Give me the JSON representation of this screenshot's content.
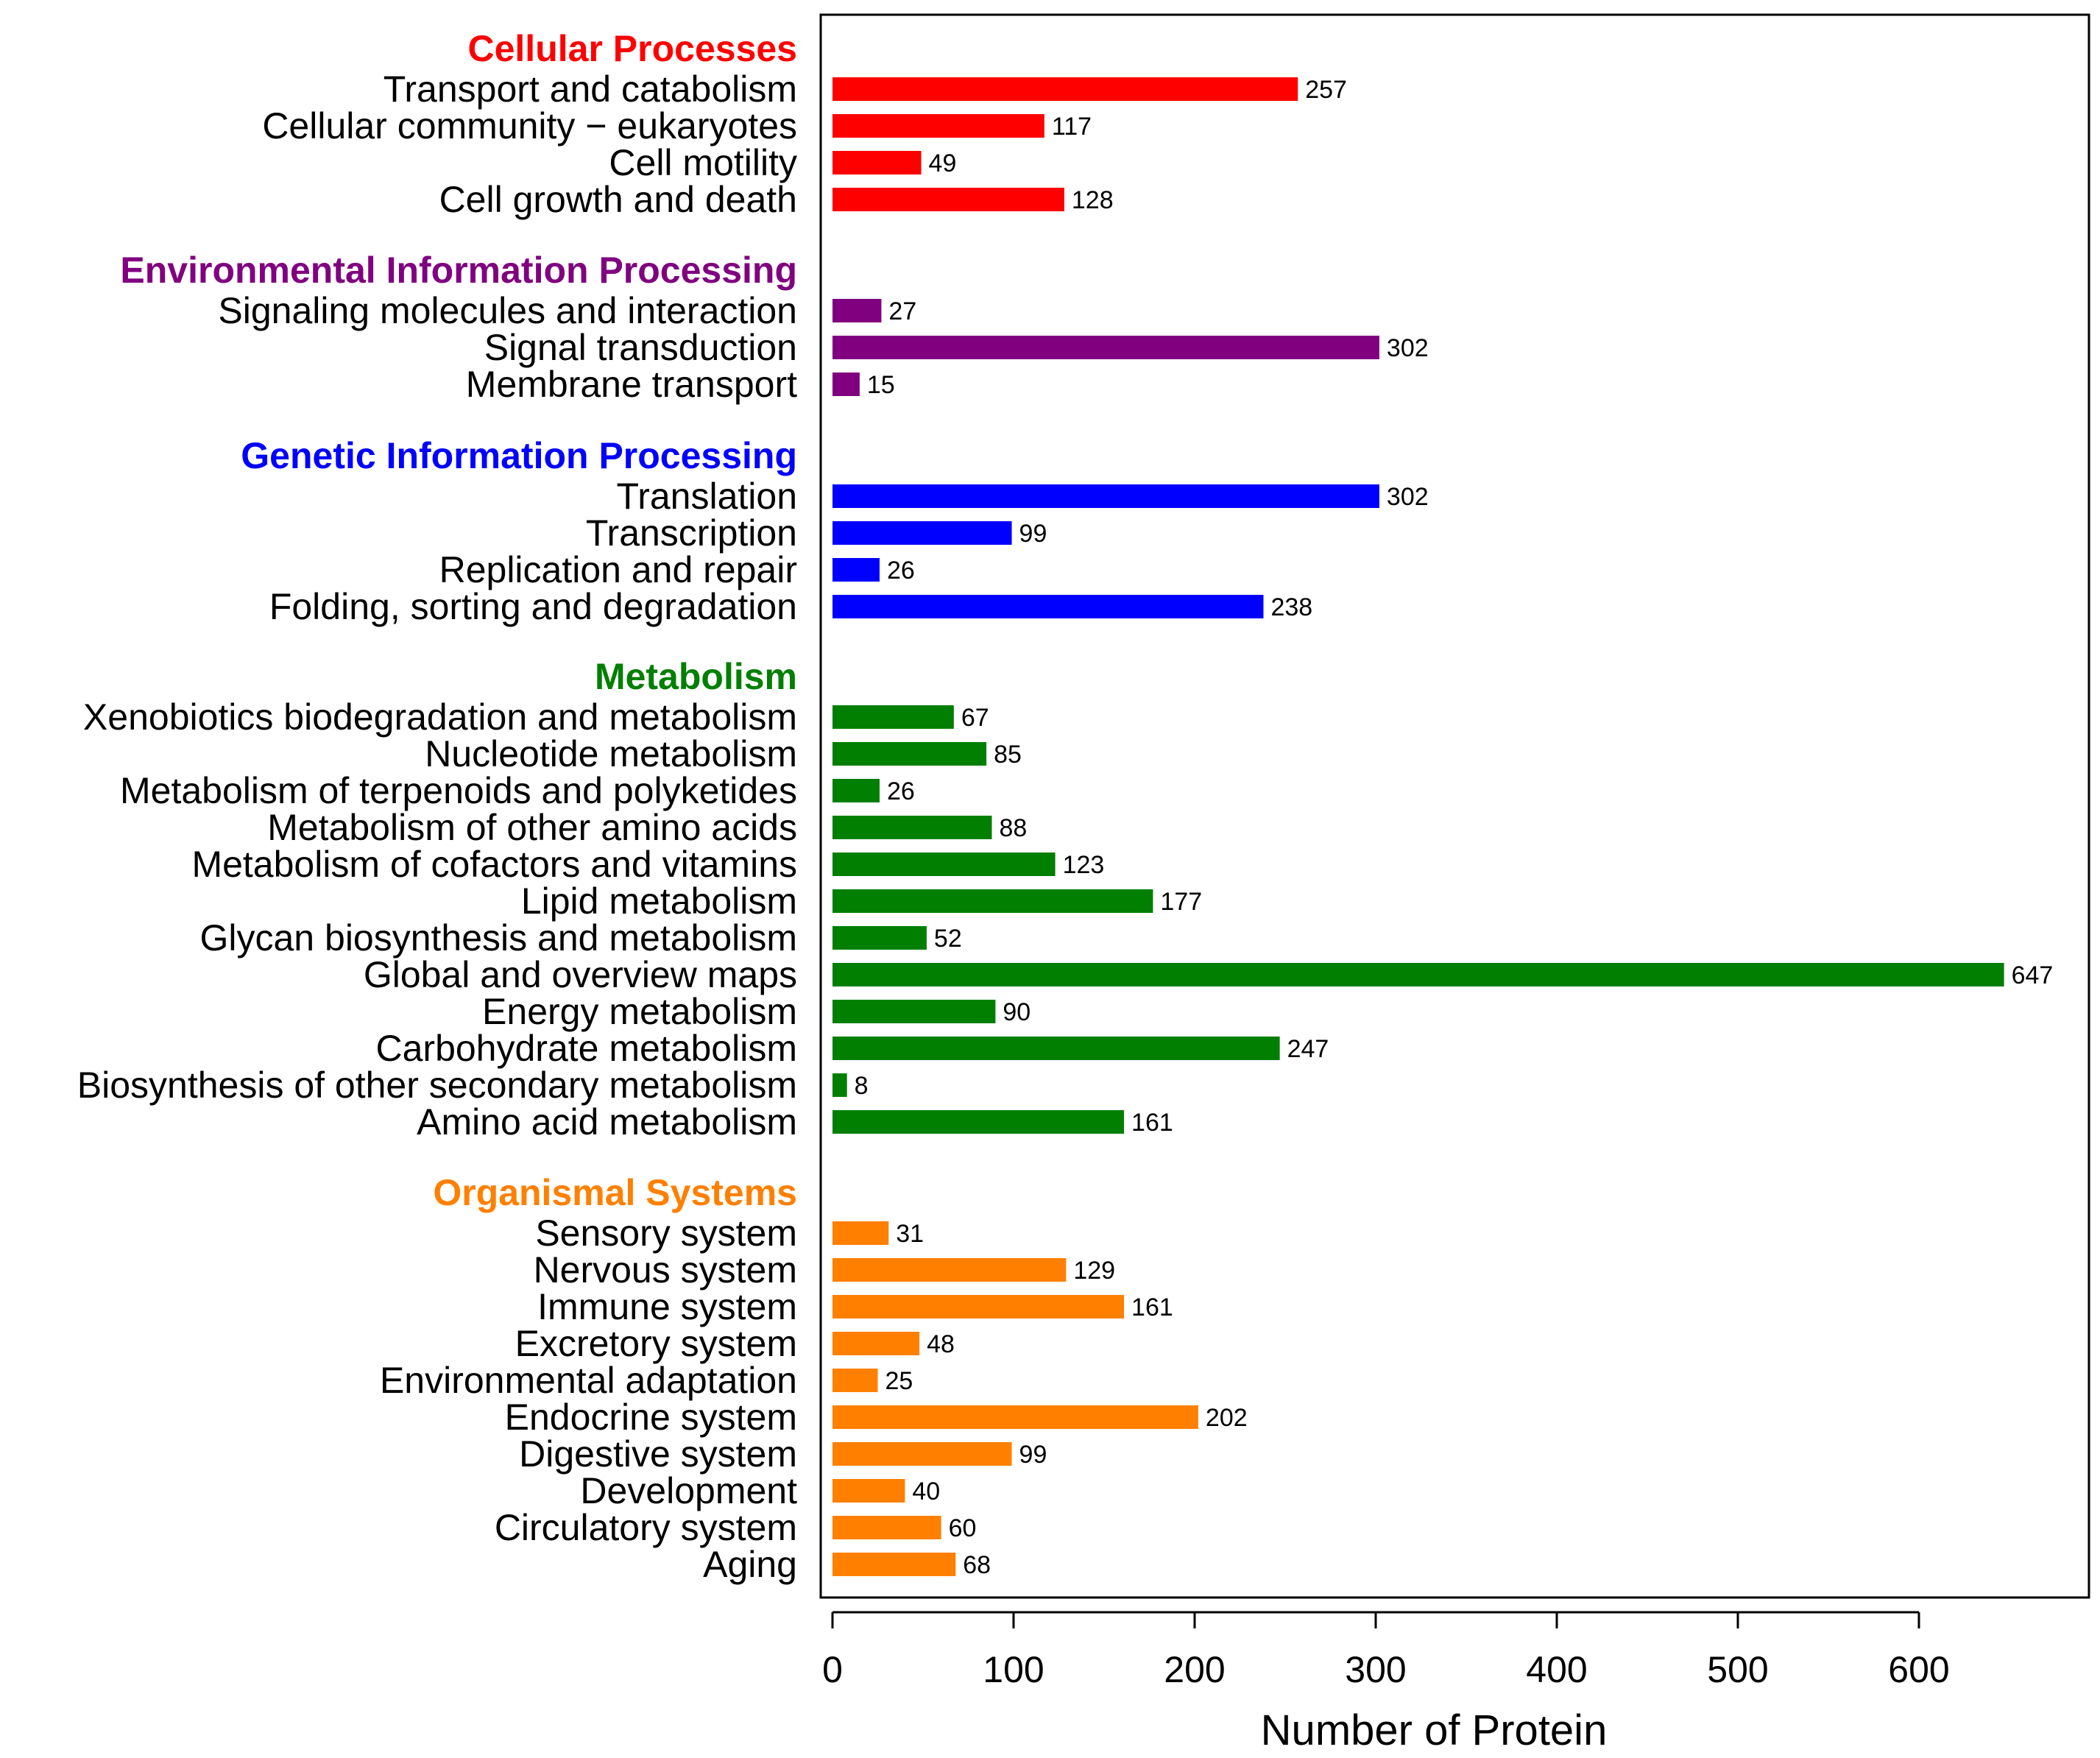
{
  "chart_data": {
    "type": "bar",
    "orientation": "horizontal",
    "xlabel": "Number of Protein",
    "xlim": [
      0,
      700
    ],
    "xticks": [
      0,
      100,
      200,
      300,
      400,
      500,
      600
    ],
    "groups": [
      {
        "name": "Cellular Processes",
        "color": "#ff0000",
        "categories": [
          "Transport and catabolism",
          "Cellular community − eukaryotes",
          "Cell motility",
          "Cell growth and death"
        ],
        "values": [
          257,
          117,
          49,
          128
        ]
      },
      {
        "name": "Environmental Information Processing",
        "color": "#800080",
        "categories": [
          "Signaling molecules and interaction",
          "Signal transduction",
          "Membrane transport"
        ],
        "values": [
          27,
          302,
          15
        ]
      },
      {
        "name": "Genetic Information Processing",
        "color": "#0000ff",
        "categories": [
          "Translation",
          "Transcription",
          "Replication and repair",
          "Folding, sorting and degradation"
        ],
        "values": [
          302,
          99,
          26,
          238
        ]
      },
      {
        "name": "Metabolism",
        "color": "#007f00",
        "categories": [
          "Xenobiotics biodegradation and metabolism",
          "Nucleotide metabolism",
          "Metabolism of terpenoids and polyketides",
          "Metabolism of other amino acids",
          "Metabolism of cofactors and vitamins",
          "Lipid metabolism",
          "Glycan biosynthesis and metabolism",
          "Global and overview maps",
          "Energy metabolism",
          "Carbohydrate metabolism",
          "Biosynthesis of other secondary metabolism",
          "Amino acid metabolism"
        ],
        "values": [
          67,
          85,
          26,
          88,
          123,
          177,
          52,
          647,
          90,
          247,
          8,
          161
        ]
      },
      {
        "name": "Organismal Systems",
        "color": "#ff8000",
        "categories": [
          "Sensory system",
          "Nervous system",
          "Immune system",
          "Excretory system",
          "Environmental adaptation",
          "Endocrine system",
          "Digestive system",
          "Development",
          "Circulatory system",
          "Aging"
        ],
        "values": [
          31,
          129,
          161,
          48,
          25,
          202,
          99,
          40,
          60,
          68
        ]
      }
    ]
  }
}
